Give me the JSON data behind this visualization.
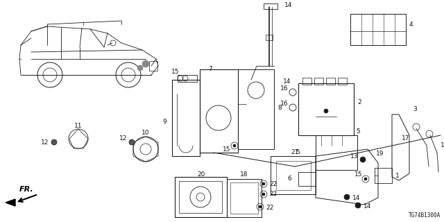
{
  "background_color": "#ffffff",
  "diagram_code": "TG74B1300A",
  "line_color": "#1a1a1a",
  "text_color": "#111111",
  "font_size_labels": 6.5,
  "font_size_code": 5.5,
  "figsize": [
    6.4,
    3.2
  ],
  "dpi": 100
}
